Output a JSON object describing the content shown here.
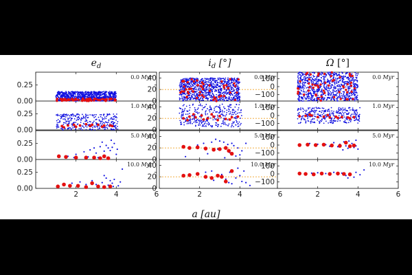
{
  "chart_data": {
    "type": "scatter",
    "xlabel": "a [au]",
    "xlim": [
      0,
      6
    ],
    "xticks": [
      2,
      4,
      6
    ],
    "columns": [
      {
        "title": "e_d",
        "ylim": [
          0,
          0.45
        ],
        "yticks": [
          0,
          0.25
        ],
        "yticklabels": [
          "0.00",
          "0.25"
        ],
        "reference_line": null
      },
      {
        "title": "i_d [°]",
        "ylim": [
          0,
          50
        ],
        "yticks": [
          0,
          20,
          40
        ],
        "yticklabels": [
          "0",
          "20",
          "40"
        ],
        "reference_line": 20
      },
      {
        "title": "Ω [°]",
        "ylim": [
          -180,
          180
        ],
        "yticks": [
          -100,
          0,
          100
        ],
        "yticklabels": [
          "−100",
          "0",
          "100"
        ],
        "reference_line": null
      }
    ],
    "times": [
      "0.0 Myr",
      "1.0 Myr",
      "5.0 Myr",
      "10.0 Myr"
    ],
    "series": [
      {
        "name": "",
        "color": "#1010e0",
        "marker": "small dot"
      },
      {
        "name": "",
        "color": "#e41010",
        "marker": "large dot"
      }
    ],
    "panels": [
      {
        "column": 0,
        "time": "0.0 Myr",
        "blue_region": {
          "x": [
            1.0,
            4.0
          ],
          "y": [
            0.0,
            0.15
          ],
          "density": "dense",
          "count": 900
        },
        "red_region": {
          "x": [
            1.0,
            4.0
          ],
          "y": [
            0.0,
            0.04
          ],
          "count": 60
        }
      },
      {
        "column": 1,
        "time": "0.0 Myr",
        "blue_region": {
          "x": [
            1.0,
            4.0
          ],
          "y": [
            0,
            40
          ],
          "density": "dense",
          "count": 900
        },
        "red_region": {
          "x": [
            1.0,
            4.0
          ],
          "y": [
            0,
            40
          ],
          "count": 55
        }
      },
      {
        "column": 2,
        "time": "0.0 Myr",
        "blue_region": {
          "x": [
            1.0,
            4.0
          ],
          "y": [
            -180,
            180
          ],
          "density": "dense",
          "count": 900
        },
        "red_region": {
          "x": [
            1.0,
            4.0
          ],
          "y": [
            -180,
            180
          ],
          "count": 55
        }
      },
      {
        "column": 0,
        "time": "1.0 Myr",
        "blue_region": {
          "x": [
            1.0,
            4.1
          ],
          "y": [
            0.0,
            0.25
          ],
          "density": "medium",
          "count": 320
        },
        "red_points": [
          [
            1.3,
            0.06
          ],
          [
            1.6,
            0.07
          ],
          [
            1.9,
            0.08
          ],
          [
            2.2,
            0.07
          ],
          [
            2.5,
            0.09
          ],
          [
            2.8,
            0.08
          ],
          [
            3.1,
            0.08
          ],
          [
            3.4,
            0.07
          ],
          [
            3.7,
            0.07
          ],
          [
            1.4,
            0.04
          ],
          [
            2.0,
            0.05
          ],
          [
            2.7,
            0.06
          ],
          [
            3.3,
            0.05
          ],
          [
            3.8,
            0.06
          ]
        ]
      },
      {
        "column": 1,
        "time": "1.0 Myr",
        "blue_region": {
          "x": [
            1.0,
            4.1
          ],
          "y": [
            5,
            45
          ],
          "density": "medium",
          "count": 320
        },
        "red_points": [
          [
            1.2,
            20
          ],
          [
            1.5,
            23
          ],
          [
            1.8,
            22
          ],
          [
            2.1,
            25
          ],
          [
            2.4,
            20
          ],
          [
            2.7,
            23
          ],
          [
            3.0,
            24
          ],
          [
            3.3,
            19
          ],
          [
            3.6,
            22
          ],
          [
            3.9,
            23
          ],
          [
            1.4,
            17
          ],
          [
            2.2,
            18
          ],
          [
            2.9,
            17
          ],
          [
            3.5,
            18
          ],
          [
            1.7,
            27
          ],
          [
            2.6,
            27
          ]
        ]
      },
      {
        "column": 2,
        "time": "1.0 Myr",
        "blue_region": {
          "x": [
            1.0,
            4.1
          ],
          "y": [
            -100,
            100
          ],
          "density": "medium",
          "count": 320
        },
        "red_points": [
          [
            1.1,
            -10
          ],
          [
            1.4,
            -5
          ],
          [
            1.7,
            0
          ],
          [
            2.0,
            -20
          ],
          [
            2.3,
            -15
          ],
          [
            2.6,
            -25
          ],
          [
            2.9,
            -15
          ],
          [
            3.2,
            -20
          ],
          [
            3.5,
            -25
          ],
          [
            3.8,
            -20
          ],
          [
            1.6,
            10
          ],
          [
            2.5,
            5
          ],
          [
            3.0,
            -30
          ],
          [
            3.6,
            -35
          ]
        ]
      },
      {
        "column": 0,
        "time": "5.0 Myr",
        "blue_points": [
          [
            1.6,
            0.05
          ],
          [
            2.0,
            0.08
          ],
          [
            2.4,
            0.12
          ],
          [
            2.7,
            0.15
          ],
          [
            2.9,
            0.18
          ],
          [
            3.0,
            0.1
          ],
          [
            3.2,
            0.2
          ],
          [
            3.3,
            0.27
          ],
          [
            3.4,
            0.13
          ],
          [
            3.5,
            0.22
          ],
          [
            3.6,
            0.18
          ],
          [
            3.7,
            0.14
          ],
          [
            3.8,
            0.19
          ],
          [
            3.9,
            0.25
          ],
          [
            4.0,
            0.08
          ],
          [
            3.1,
            0.03
          ],
          [
            2.6,
            0.04
          ],
          [
            3.75,
            0.3
          ],
          [
            4.05,
            0.16
          ],
          [
            1.9,
            0.03
          ],
          [
            3.45,
            0.06
          ]
        ],
        "red_points": [
          [
            1.15,
            0.05
          ],
          [
            1.5,
            0.04
          ],
          [
            2.0,
            0.03
          ],
          [
            2.5,
            0.03
          ],
          [
            2.9,
            0.03
          ],
          [
            3.2,
            0.02
          ],
          [
            3.6,
            0.02
          ],
          [
            3.4,
            0.05
          ]
        ]
      },
      {
        "column": 1,
        "time": "5.0 Myr",
        "blue_points": [
          [
            1.3,
            5
          ],
          [
            1.9,
            25
          ],
          [
            2.2,
            28
          ],
          [
            2.6,
            30
          ],
          [
            2.8,
            35
          ],
          [
            3.0,
            32
          ],
          [
            3.2,
            30
          ],
          [
            3.3,
            22
          ],
          [
            3.4,
            26
          ],
          [
            3.6,
            28
          ],
          [
            3.7,
            24
          ],
          [
            3.9,
            20
          ],
          [
            4.0,
            8
          ],
          [
            4.1,
            15
          ],
          [
            3.5,
            12
          ],
          [
            2.4,
            10
          ],
          [
            3.8,
            6
          ],
          [
            4.3,
            28
          ],
          [
            3.25,
            3
          ],
          [
            2.9,
            18
          ]
        ],
        "red_points": [
          [
            1.2,
            22
          ],
          [
            1.5,
            20
          ],
          [
            1.9,
            21
          ],
          [
            2.3,
            19
          ],
          [
            2.7,
            17
          ],
          [
            3.0,
            18
          ],
          [
            3.3,
            20
          ],
          [
            3.6,
            10
          ],
          [
            3.45,
            15
          ]
        ]
      },
      {
        "column": 2,
        "time": "5.0 Myr",
        "blue_points": [
          [
            1.6,
            20
          ],
          [
            2.0,
            10
          ],
          [
            2.4,
            5
          ],
          [
            2.8,
            30
          ],
          [
            3.0,
            -20
          ],
          [
            3.1,
            10
          ],
          [
            3.3,
            40
          ],
          [
            3.4,
            -10
          ],
          [
            3.5,
            -40
          ],
          [
            3.6,
            0
          ],
          [
            3.7,
            20
          ],
          [
            3.8,
            -30
          ],
          [
            3.9,
            60
          ],
          [
            4.0,
            -50
          ],
          [
            3.25,
            -60
          ],
          [
            2.6,
            -15
          ],
          [
            3.55,
            50
          ],
          [
            3.9,
            -10
          ]
        ],
        "red_points": [
          [
            1.1,
            0
          ],
          [
            1.5,
            5
          ],
          [
            1.9,
            0
          ],
          [
            2.3,
            5
          ],
          [
            2.7,
            -5
          ],
          [
            3.1,
            -10
          ],
          [
            3.4,
            30
          ],
          [
            3.6,
            -15
          ],
          [
            3.8,
            -5
          ]
        ]
      },
      {
        "column": 0,
        "time": "10.0 Myr",
        "blue_points": [
          [
            1.8,
            0.08
          ],
          [
            2.2,
            0.1
          ],
          [
            2.5,
            0.06
          ],
          [
            2.8,
            0.12
          ],
          [
            3.0,
            0.06
          ],
          [
            3.3,
            0.09
          ],
          [
            3.5,
            0.16
          ],
          [
            3.6,
            0.05
          ],
          [
            3.7,
            0.12
          ],
          [
            3.8,
            0.08
          ],
          [
            3.9,
            0.14
          ],
          [
            4.1,
            0.04
          ],
          [
            4.2,
            0.1
          ],
          [
            3.85,
            0.03
          ],
          [
            4.3,
            0.3
          ],
          [
            3.4,
            0.2
          ]
        ],
        "red_points": [
          [
            1.1,
            0.03
          ],
          [
            1.4,
            0.06
          ],
          [
            1.7,
            0.04
          ],
          [
            2.1,
            0.04
          ],
          [
            2.5,
            0.02
          ],
          [
            2.8,
            0.08
          ],
          [
            3.1,
            0.03
          ],
          [
            3.4,
            0.02
          ],
          [
            3.7,
            0.03
          ]
        ]
      },
      {
        "column": 1,
        "time": "10.0 Myr",
        "blue_points": [
          [
            1.9,
            25
          ],
          [
            2.3,
            28
          ],
          [
            2.6,
            30
          ],
          [
            2.9,
            20
          ],
          [
            3.1,
            24
          ],
          [
            3.3,
            16
          ],
          [
            3.5,
            28
          ],
          [
            3.6,
            8
          ],
          [
            3.8,
            18
          ],
          [
            3.9,
            35
          ],
          [
            4.0,
            22
          ],
          [
            4.1,
            12
          ],
          [
            4.2,
            30
          ],
          [
            4.3,
            10
          ],
          [
            4.5,
            5
          ],
          [
            3.45,
            10
          ],
          [
            2.7,
            14
          ]
        ],
        "red_points": [
          [
            1.2,
            22
          ],
          [
            1.5,
            23
          ],
          [
            1.9,
            25
          ],
          [
            2.3,
            20
          ],
          [
            2.6,
            18
          ],
          [
            2.9,
            22
          ],
          [
            3.1,
            20
          ],
          [
            3.3,
            12
          ],
          [
            3.6,
            30
          ]
        ]
      },
      {
        "column": 2,
        "time": "10.0 Myr",
        "blue_points": [
          [
            1.7,
            10
          ],
          [
            2.0,
            15
          ],
          [
            2.4,
            5
          ],
          [
            2.8,
            20
          ],
          [
            3.0,
            -10
          ],
          [
            3.2,
            10
          ],
          [
            3.4,
            -20
          ],
          [
            3.6,
            10
          ],
          [
            3.8,
            -40
          ],
          [
            3.9,
            20
          ],
          [
            4.1,
            -10
          ],
          [
            4.3,
            50
          ],
          [
            3.5,
            -50
          ]
        ],
        "red_points": [
          [
            1.1,
            5
          ],
          [
            1.4,
            0
          ],
          [
            1.8,
            -5
          ],
          [
            2.2,
            5
          ],
          [
            2.6,
            0
          ],
          [
            3.0,
            5
          ],
          [
            3.3,
            0
          ],
          [
            3.6,
            -5
          ]
        ]
      }
    ]
  }
}
